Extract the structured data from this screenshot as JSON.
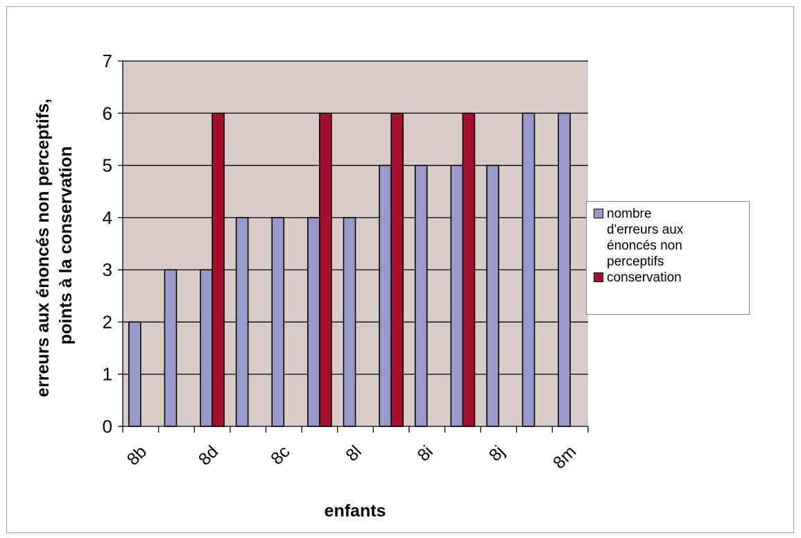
{
  "chart_data": {
    "type": "bar",
    "title": "",
    "xlabel": "enfants",
    "ylabel_lines": [
      "erreurs aux énoncés non perceptifs,",
      "points à la conservation"
    ],
    "ylim": [
      0,
      7
    ],
    "yticks": [
      0,
      1,
      2,
      3,
      4,
      5,
      6,
      7
    ],
    "grid": true,
    "legend_position": "right",
    "tick_labels": [
      "8b",
      "8d",
      "8c",
      "8l",
      "8i",
      "8j",
      "8m"
    ],
    "x_positions": [
      1,
      2,
      3,
      4,
      5,
      6,
      7,
      8,
      9,
      10,
      11,
      12,
      13
    ],
    "series": [
      {
        "name": "nombre d'erreurs aux énoncés non perceptifs",
        "color": "#9999cc",
        "values": [
          2,
          3,
          3,
          4,
          4,
          4,
          4,
          5,
          5,
          5,
          5,
          6,
          6
        ]
      },
      {
        "name": "conservation",
        "color": "#a50f2d",
        "values": [
          null,
          null,
          6,
          null,
          null,
          6,
          null,
          6,
          null,
          6,
          null,
          null,
          null
        ]
      }
    ]
  },
  "legend": {
    "series1_lines": [
      "nombre",
      "d'erreurs aux",
      "énoncés non",
      "perceptifs"
    ],
    "series2": "conservation"
  },
  "colors": {
    "plot_background": "#d8ccc8",
    "gridline": "#000000"
  }
}
